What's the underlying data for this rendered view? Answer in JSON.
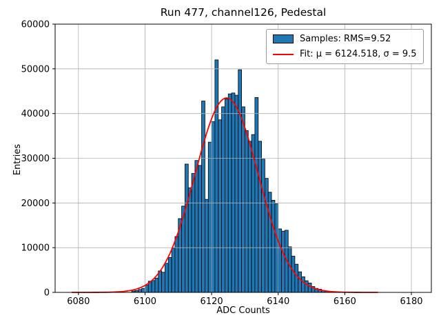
{
  "chart_data": {
    "type": "bar",
    "subtype": "histogram",
    "title": "Run 477, channel126, Pedestal",
    "xlabel": "ADC Counts",
    "ylabel": "Entries",
    "xlim": [
      6073,
      6186
    ],
    "ylim": [
      0,
      60000
    ],
    "xticks": [
      6080,
      6100,
      6120,
      6140,
      6160,
      6180
    ],
    "yticks": [
      0,
      10000,
      20000,
      30000,
      40000,
      50000,
      60000
    ],
    "grid": true,
    "bin_start": 6096,
    "bin_width": 1,
    "bar_color": "#1f77b4",
    "bar_edge_color": "#000000",
    "values": [
      300,
      420,
      650,
      900,
      1600,
      2500,
      2650,
      3200,
      4800,
      4500,
      6500,
      7800,
      9900,
      12500,
      16500,
      19300,
      28700,
      23400,
      26600,
      29500,
      28400,
      42800,
      20800,
      33600,
      38200,
      52000,
      38600,
      41500,
      43300,
      44400,
      44600,
      44100,
      49800,
      41500,
      36200,
      33800,
      35300,
      43600,
      33800,
      29800,
      25500,
      22400,
      20600,
      19800,
      14200,
      13700,
      13900,
      10200,
      8100,
      6300,
      4600,
      3500,
      2600,
      2100,
      1300,
      900,
      700,
      420,
      260,
      150
    ],
    "fit": {
      "shape": "gaussian",
      "mu": 6124.518,
      "sigma": 9.5,
      "amplitude": 43500,
      "color": "#ff0000",
      "x_range": [
        6078,
        6170
      ]
    },
    "legend": {
      "position": "upper right",
      "entries": [
        {
          "label": "Samples: RMS=9.52",
          "swatch": "bar",
          "color": "#1f77b4"
        },
        {
          "label": "Fit: μ = 6124.518, σ = 9.5",
          "swatch": "line",
          "color": "#ff0000"
        }
      ]
    }
  }
}
